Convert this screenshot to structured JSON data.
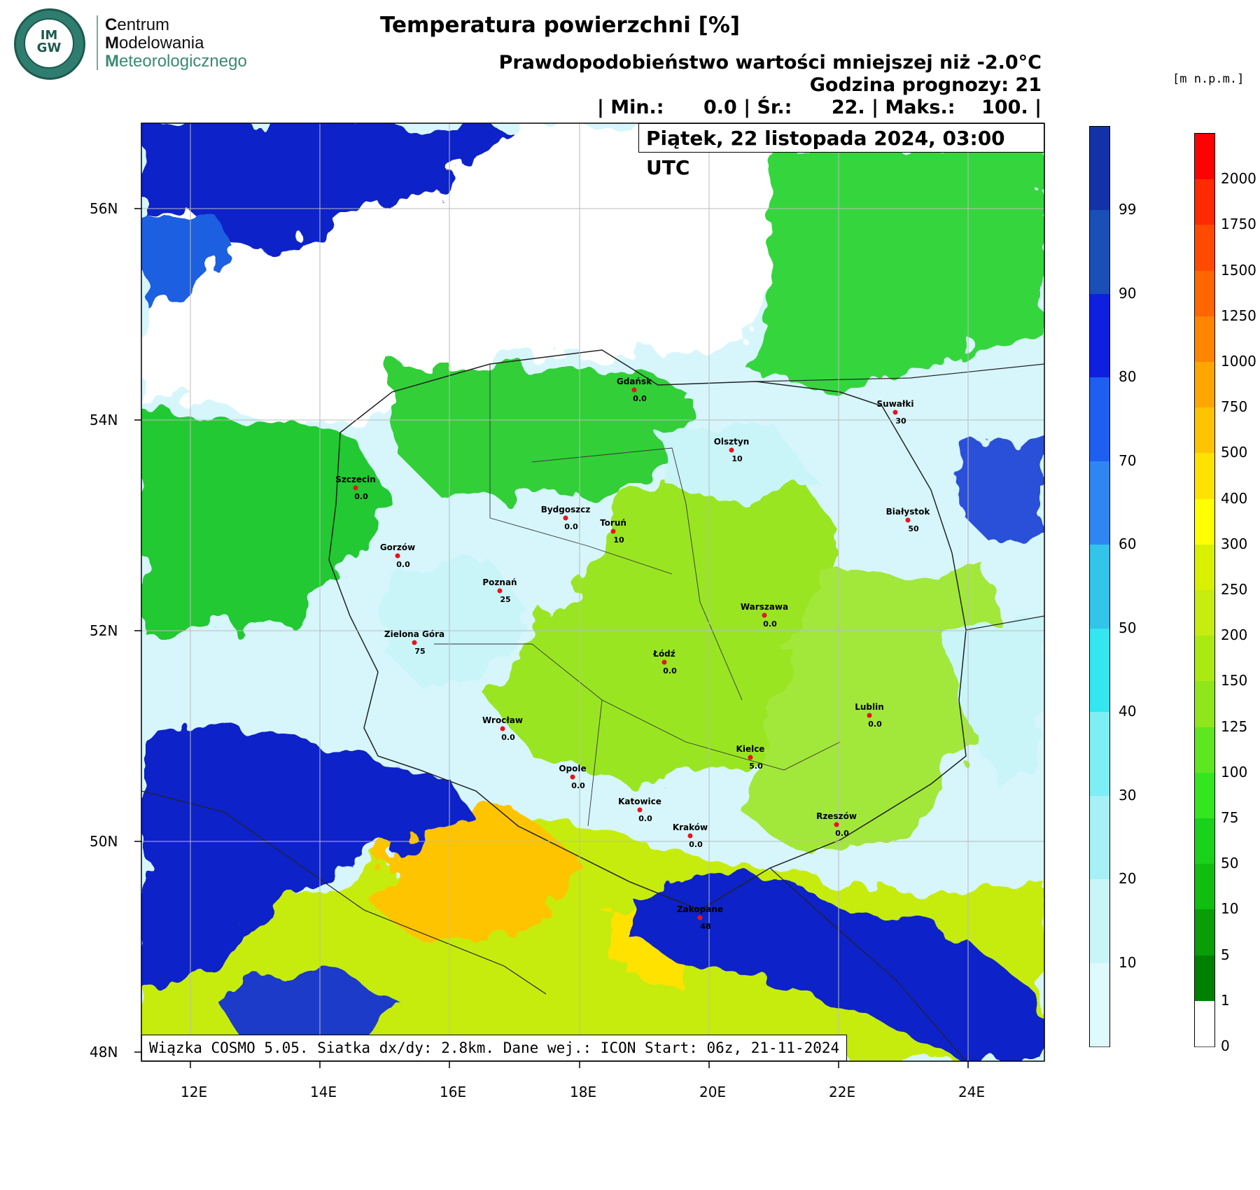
{
  "header": {
    "logo_text_top": "IM",
    "logo_text_bottom": "GW",
    "org_line1_initial": "C",
    "org_line1_rest": "entrum",
    "org_line2_initial": "M",
    "org_line2_rest": "odelowania",
    "org_line3_initial": "M",
    "org_line3_rest": "eteorologicznego",
    "title": "Temperatura powierzchni [%]",
    "subtitle_prob": "Prawdopodobieństwo wartości mniejszej niż -2.0°C",
    "subtitle_hour": "Godzina prognozy: 21",
    "subtitle_stats": "| Min.:      0.0 | Śr.:      22. | Maks.:    100. |",
    "date_box": "Piątek, 22 listopada 2024, 03:00 UTC",
    "units_label": "[m  n.p.m.]"
  },
  "footer": {
    "text": "Wiązka COSMO 5.05. Siatka dx/dy: 2.8km. Dane wej.: ICON Start: 06z, 21-11-2024"
  },
  "axes": {
    "lat_ticks": [
      "56N",
      "54N",
      "52N",
      "50N",
      "48N"
    ],
    "lon_ticks": [
      "12E",
      "14E",
      "16E",
      "18E",
      "20E",
      "22E",
      "24E"
    ]
  },
  "probability_colorbar": {
    "labels": [
      "99",
      "90",
      "80",
      "70",
      "60",
      "50",
      "40",
      "30",
      "20",
      "10"
    ],
    "colors": [
      "#1432a8",
      "#1a4fb8",
      "#0f1fe0",
      "#1e5ef0",
      "#2f86f2",
      "#33c4ea",
      "#33e6ef",
      "#7deef4",
      "#a6f0f6",
      "#c9f5f9",
      "#dffafc"
    ]
  },
  "elevation_colorbar": {
    "labels": [
      "2000",
      "1750",
      "1500",
      "1250",
      "1000",
      "750",
      "500",
      "400",
      "300",
      "250",
      "200",
      "150",
      "125",
      "100",
      "75",
      "50",
      "10",
      "5",
      "1",
      "0"
    ],
    "colors": [
      "#ff0000",
      "#ff2a00",
      "#ff4a00",
      "#ff6600",
      "#ff8400",
      "#ffa600",
      "#ffc400",
      "#ffe200",
      "#ffff00",
      "#d9f000",
      "#c6ec10",
      "#aaea10",
      "#8fe61a",
      "#5ee61e",
      "#34e61e",
      "#19d21a",
      "#0fbe0f",
      "#079e07",
      "#008000",
      "#ffffff"
    ]
  },
  "cities": [
    {
      "name": "Gdańsk",
      "value": "0.0"
    },
    {
      "name": "Suwałki",
      "value": "30"
    },
    {
      "name": "Olsztyn",
      "value": "10"
    },
    {
      "name": "Szczecin",
      "value": "0.0"
    },
    {
      "name": "Bydgoszcz",
      "value": "0.0"
    },
    {
      "name": "Toruń",
      "value": "10"
    },
    {
      "name": "Białystok",
      "value": "50"
    },
    {
      "name": "Gorzów",
      "value": "0.0"
    },
    {
      "name": "Poznań",
      "value": "25"
    },
    {
      "name": "Warszawa",
      "value": "0.0"
    },
    {
      "name": "Zielona Góra",
      "value": "75"
    },
    {
      "name": "Łódź",
      "value": "0.0"
    },
    {
      "name": "Lublin",
      "value": "0.0"
    },
    {
      "name": "Wrocław",
      "value": "0.0"
    },
    {
      "name": "Kielce",
      "value": "5.0"
    },
    {
      "name": "Opole",
      "value": "0.0"
    },
    {
      "name": "Katowice",
      "value": "0.0"
    },
    {
      "name": "Kraków",
      "value": "0.0"
    },
    {
      "name": "Rzeszów",
      "value": "0.0"
    },
    {
      "name": "Zakopane",
      "value": "48"
    }
  ]
}
